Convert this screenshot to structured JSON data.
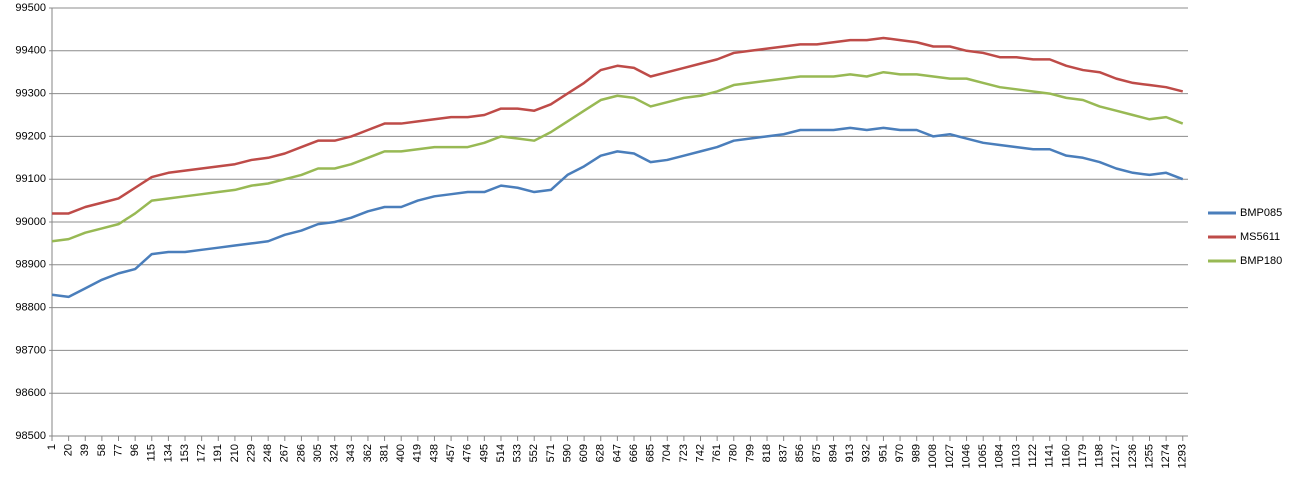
{
  "chart_data": {
    "type": "line",
    "x": [
      1,
      20,
      39,
      58,
      77,
      96,
      115,
      134,
      153,
      172,
      191,
      210,
      229,
      248,
      267,
      286,
      305,
      324,
      343,
      362,
      381,
      400,
      419,
      438,
      457,
      476,
      495,
      514,
      533,
      552,
      571,
      590,
      609,
      628,
      647,
      666,
      685,
      704,
      723,
      742,
      761,
      780,
      799,
      818,
      837,
      856,
      875,
      894,
      913,
      932,
      951,
      970,
      989,
      1008,
      1027,
      1046,
      1065,
      1084,
      1103,
      1122,
      1141,
      1160,
      1179,
      1198,
      1217,
      1236,
      1255,
      1274,
      1293
    ],
    "xticks": [
      1,
      20,
      39,
      58,
      77,
      96,
      115,
      134,
      153,
      172,
      191,
      210,
      229,
      248,
      267,
      286,
      305,
      324,
      343,
      362,
      381,
      400,
      419,
      438,
      457,
      476,
      495,
      514,
      533,
      552,
      571,
      590,
      609,
      628,
      647,
      666,
      685,
      704,
      723,
      742,
      761,
      780,
      799,
      818,
      837,
      856,
      875,
      894,
      913,
      932,
      951,
      970,
      989,
      1008,
      1027,
      1046,
      1065,
      1084,
      1103,
      1122,
      1141,
      1160,
      1179,
      1198,
      1217,
      1236,
      1255,
      1274,
      1293
    ],
    "xlim": [
      1,
      1299
    ],
    "ylim": [
      98500,
      99500
    ],
    "yticks": [
      98500,
      98600,
      98700,
      98800,
      98900,
      99000,
      99100,
      99200,
      99300,
      99400,
      99500
    ],
    "grid": true,
    "legend": "right",
    "series": [
      {
        "name": "BMP085",
        "color": "#4a7ebb",
        "values": [
          98830,
          98825,
          98845,
          98865,
          98880,
          98890,
          98925,
          98930,
          98930,
          98935,
          98940,
          98945,
          98950,
          98955,
          98970,
          98980,
          98995,
          99000,
          99010,
          99025,
          99035,
          99035,
          99050,
          99060,
          99065,
          99070,
          99070,
          99085,
          99080,
          99070,
          99075,
          99110,
          99130,
          99155,
          99165,
          99160,
          99140,
          99145,
          99155,
          99165,
          99175,
          99190,
          99195,
          99200,
          99205,
          99215,
          99215,
          99215,
          99220,
          99215,
          99220,
          99215,
          99215,
          99200,
          99205,
          99195,
          99185,
          99180,
          99175,
          99170,
          99170,
          99155,
          99150,
          99140,
          99125,
          99115,
          99110,
          99115,
          99100
        ]
      },
      {
        "name": "MS5611",
        "color": "#be4b48",
        "values": [
          99020,
          99020,
          99035,
          99045,
          99055,
          99080,
          99105,
          99115,
          99120,
          99125,
          99130,
          99135,
          99145,
          99150,
          99160,
          99175,
          99190,
          99190,
          99200,
          99215,
          99230,
          99230,
          99235,
          99240,
          99245,
          99245,
          99250,
          99265,
          99265,
          99260,
          99275,
          99300,
          99325,
          99355,
          99365,
          99360,
          99340,
          99350,
          99360,
          99370,
          99380,
          99395,
          99400,
          99405,
          99410,
          99415,
          99415,
          99420,
          99425,
          99425,
          99430,
          99425,
          99420,
          99410,
          99410,
          99400,
          99395,
          99385,
          99385,
          99380,
          99380,
          99365,
          99355,
          99350,
          99335,
          99325,
          99320,
          99315,
          99305
        ]
      },
      {
        "name": "BMP180",
        "color": "#98b954",
        "values": [
          98955,
          98960,
          98975,
          98985,
          98995,
          99020,
          99050,
          99055,
          99060,
          99065,
          99070,
          99075,
          99085,
          99090,
          99100,
          99110,
          99125,
          99125,
          99135,
          99150,
          99165,
          99165,
          99170,
          99175,
          99175,
          99175,
          99185,
          99200,
          99195,
          99190,
          99210,
          99235,
          99260,
          99285,
          99295,
          99290,
          99270,
          99280,
          99290,
          99295,
          99305,
          99320,
          99325,
          99330,
          99335,
          99340,
          99340,
          99340,
          99345,
          99340,
          99350,
          99345,
          99345,
          99340,
          99335,
          99335,
          99325,
          99315,
          99310,
          99305,
          99300,
          99290,
          99285,
          99270,
          99260,
          99250,
          99240,
          99245,
          99230
        ]
      }
    ]
  }
}
